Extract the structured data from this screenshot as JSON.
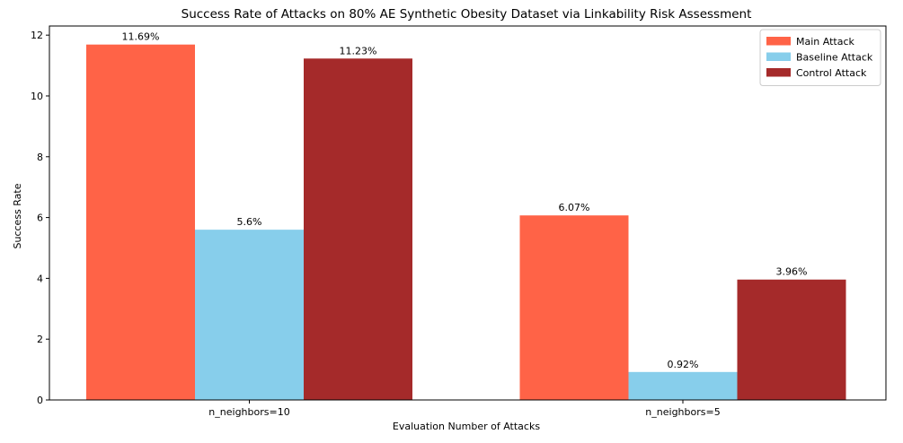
{
  "chart_data": {
    "type": "bar",
    "title": "Success Rate of Attacks on 80% AE Synthetic Obesity Dataset via Linkability Risk Assessment",
    "xlabel": "Evaluation Number of Attacks",
    "ylabel": "Success Rate",
    "categories": [
      "n_neighbors=10",
      "n_neighbors=5"
    ],
    "ylim": [
      0,
      12.3
    ],
    "yticks": [
      0,
      2,
      4,
      6,
      8,
      10,
      12
    ],
    "grid": false,
    "legend_position": "top-right",
    "series": [
      {
        "name": "Main Attack",
        "color": "#FF6347",
        "values": [
          11.69,
          6.07
        ],
        "labels": [
          "11.69%",
          "6.07%"
        ]
      },
      {
        "name": "Baseline Attack",
        "color": "#87CEEB",
        "values": [
          5.6,
          0.92
        ],
        "labels": [
          "5.6%",
          "0.92%"
        ]
      },
      {
        "name": "Control Attack",
        "color": "#A52A2A",
        "values": [
          11.23,
          3.96
        ],
        "labels": [
          "11.23%",
          "3.96%"
        ]
      }
    ]
  }
}
